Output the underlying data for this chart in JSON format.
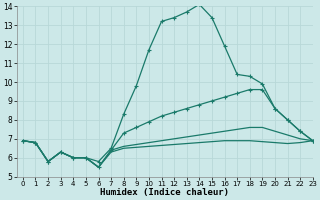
{
  "xlabel": "Humidex (Indice chaleur)",
  "background_color": "#cce8e8",
  "grid_color": "#b8d8d8",
  "line_color": "#1a7a6a",
  "xlim": [
    -0.5,
    23
  ],
  "ylim": [
    5,
    14
  ],
  "xticks": [
    0,
    1,
    2,
    3,
    4,
    5,
    6,
    7,
    8,
    9,
    10,
    11,
    12,
    13,
    14,
    15,
    16,
    17,
    18,
    19,
    20,
    21,
    22,
    23
  ],
  "yticks": [
    5,
    6,
    7,
    8,
    9,
    10,
    11,
    12,
    13,
    14
  ],
  "line1_x": [
    0,
    1,
    2,
    3,
    4,
    5,
    6,
    7,
    8,
    9,
    10,
    11,
    12,
    13,
    14,
    15,
    16,
    17,
    18,
    19,
    20,
    21,
    22,
    23
  ],
  "line1_y": [
    6.9,
    6.8,
    5.8,
    6.3,
    6.0,
    6.0,
    5.8,
    6.5,
    8.3,
    9.8,
    11.7,
    13.2,
    13.4,
    13.7,
    14.1,
    13.4,
    11.9,
    10.4,
    10.3,
    9.9,
    8.6,
    8.0,
    7.4,
    6.9
  ],
  "line2_x": [
    0,
    1,
    2,
    3,
    4,
    5,
    6,
    7,
    8,
    9,
    10,
    11,
    12,
    13,
    14,
    15,
    16,
    17,
    18,
    19,
    20,
    21,
    22,
    23
  ],
  "line2_y": [
    6.9,
    6.8,
    5.8,
    6.3,
    6.0,
    6.0,
    5.5,
    6.4,
    7.3,
    7.6,
    7.9,
    8.2,
    8.4,
    8.6,
    8.8,
    9.0,
    9.2,
    9.4,
    9.6,
    9.6,
    8.6,
    8.0,
    7.4,
    6.9
  ],
  "line3_x": [
    0,
    1,
    2,
    3,
    4,
    5,
    6,
    7,
    8,
    9,
    10,
    11,
    12,
    13,
    14,
    15,
    16,
    17,
    18,
    19,
    20,
    21,
    22,
    23
  ],
  "line3_y": [
    6.9,
    6.8,
    5.8,
    6.3,
    6.0,
    6.0,
    5.5,
    6.4,
    6.6,
    6.7,
    6.8,
    6.9,
    7.0,
    7.1,
    7.2,
    7.3,
    7.4,
    7.5,
    7.6,
    7.6,
    7.4,
    7.2,
    7.0,
    6.9
  ],
  "line4_x": [
    0,
    1,
    2,
    3,
    4,
    5,
    6,
    7,
    8,
    9,
    10,
    11,
    12,
    13,
    14,
    15,
    16,
    17,
    18,
    19,
    20,
    21,
    22,
    23
  ],
  "line4_y": [
    6.9,
    6.8,
    5.8,
    6.3,
    6.0,
    6.0,
    5.5,
    6.3,
    6.5,
    6.55,
    6.6,
    6.65,
    6.7,
    6.75,
    6.8,
    6.85,
    6.9,
    6.9,
    6.9,
    6.85,
    6.8,
    6.75,
    6.8,
    6.9
  ]
}
